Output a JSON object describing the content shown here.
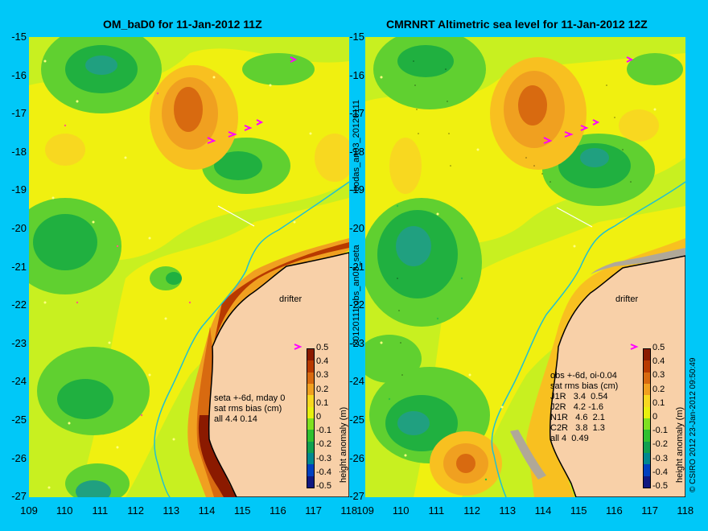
{
  "left_panel": {
    "title": "OM_baD0 for 11-Jan-2012 11Z",
    "side_label": "20120111.obs_an03_seta",
    "stats": [
      "seta +-6d, mday 0",
      "sat rms bias (cm)",
      "all 4.4 0.14"
    ],
    "drifter_label": "drifter"
  },
  "right_panel": {
    "title": "CMRNRT Altimetric sea level  for 11-Jan-2012 12Z",
    "side_label": "bodas_an03_20120111",
    "stats": [
      "obs +-6d, oi-0.04",
      "sat rms bias (cm)",
      "J1R   3.4  0.54",
      "J2R   4.2 -1.6",
      "N1R   4.6  2.1",
      "C2R   3.8  1.3",
      "all 4  0.49"
    ],
    "drifter_label": "drifter",
    "credit": "© CSIRO 2012  23-Jan-2012 09:50:49"
  },
  "axes": {
    "y_ticks": [
      "-15",
      "-16",
      "-17",
      "-18",
      "-19",
      "-20",
      "-21",
      "-22",
      "-23",
      "-24",
      "-25",
      "-26",
      "-27"
    ],
    "x_ticks": [
      "109",
      "110",
      "111",
      "112",
      "113",
      "114",
      "115",
      "116",
      "117",
      "118"
    ]
  },
  "colorbar": {
    "label": "height anomaly (m)",
    "ticks": [
      "0.5",
      "0.4",
      "0.3",
      "0.2",
      "0.1",
      "0",
      "-0.1",
      "-0.2",
      "-0.3",
      "-0.4",
      "-0.5"
    ],
    "colors": [
      "#8b1a00",
      "#b83a00",
      "#d86a10",
      "#f0a020",
      "#f8d820",
      "#e8f010",
      "#80e020",
      "#30c030",
      "#10a050",
      "#008890",
      "#0040c0",
      "#101880"
    ]
  }
}
